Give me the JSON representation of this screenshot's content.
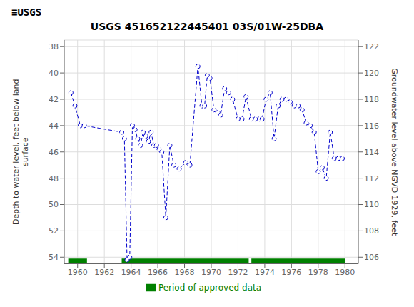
{
  "chart_data": {
    "type": "line",
    "title": "USGS 451652122445401 03S/01W-25DBA",
    "annotations": [
      "≡USGS"
    ],
    "ylabel": "Depth to water level, feet below land\nsurface",
    "y2label": "Groundwater level above NGVD 1929, feet",
    "x": [
      1959.5,
      1959.8,
      1960.2,
      1960.5,
      1963.3,
      1963.5,
      1963.7,
      1963.9,
      1964.1,
      1964.3,
      1964.5,
      1964.7,
      1964.9,
      1965.1,
      1965.3,
      1965.5,
      1965.7,
      1965.9,
      1966.1,
      1966.3,
      1966.6,
      1966.9,
      1967.2,
      1967.6,
      1968.1,
      1968.4,
      1969.0,
      1969.3,
      1969.5,
      1969.7,
      1969.9,
      1970.2,
      1970.5,
      1970.7,
      1971.0,
      1971.3,
      1971.6,
      1972.0,
      1972.3,
      1972.6,
      1973.0,
      1973.3,
      1973.6,
      1973.8,
      1974.1,
      1974.4,
      1974.7,
      1975.0,
      1975.3,
      1975.6,
      1975.9,
      1976.2,
      1976.5,
      1976.8,
      1977.1,
      1977.4,
      1977.7,
      1978.0,
      1978.3,
      1978.6,
      1978.9,
      1979.2,
      1979.5,
      1979.8
    ],
    "series": [
      {
        "type": "line",
        "color": "#0000CC",
        "marker": "circle",
        "line_style": "dashed",
        "values": [
          41.5,
          42.5,
          44.0,
          44.0,
          44.5,
          45.0,
          54.2,
          54.0,
          44.0,
          44.3,
          45.0,
          45.5,
          44.5,
          44.8,
          45.2,
          44.5,
          45.5,
          45.5,
          45.8,
          46.0,
          51.0,
          45.5,
          47.0,
          47.3,
          46.8,
          47.0,
          39.5,
          42.5,
          42.5,
          40.2,
          40.4,
          42.8,
          43.0,
          43.2,
          41.2,
          41.5,
          42.0,
          43.5,
          43.5,
          41.8,
          43.5,
          43.5,
          43.5,
          43.5,
          42.0,
          41.5,
          45.0,
          42.5,
          42.0,
          42.0,
          42.2,
          42.5,
          42.5,
          42.8,
          43.8,
          44.0,
          44.5,
          47.5,
          47.2,
          48.0,
          44.5,
          46.5,
          46.5,
          46.5
        ]
      },
      {
        "name": "Period of approved data",
        "type": "bar",
        "orientation": "horizontal",
        "color": "#008000",
        "value": 54.3,
        "periods": [
          [
            1959.3,
            1960.7
          ],
          [
            1963.3,
            1972.8
          ],
          [
            1973.0,
            1980.0
          ]
        ]
      }
    ],
    "xlim": [
      1959,
      1981
    ],
    "xticks": [
      1960,
      1962,
      1964,
      1966,
      1968,
      1970,
      1972,
      1974,
      1976,
      1978,
      1980
    ],
    "ylim": [
      54.5,
      37.5
    ],
    "yticks": [
      38,
      40,
      42,
      44,
      46,
      48,
      50,
      52,
      54
    ],
    "y2lim": [
      105.5,
      122.5
    ],
    "y2ticks": [
      106,
      108,
      110,
      112,
      114,
      116,
      118,
      120,
      122
    ],
    "grid": true,
    "legend": "bottom"
  }
}
